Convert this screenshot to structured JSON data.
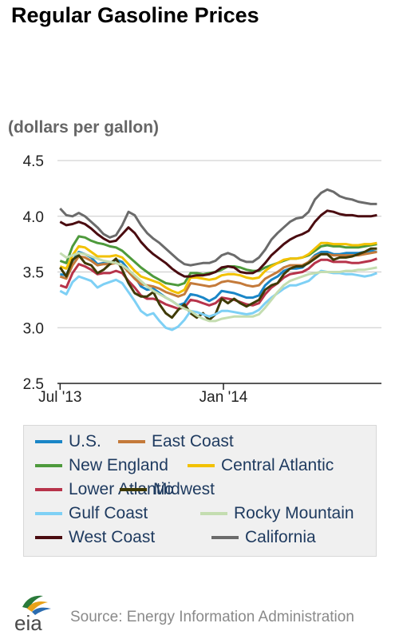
{
  "chart_data": {
    "type": "line",
    "title": "Regular Gasoline Prices",
    "ylabel": "(dollars per gallon)",
    "ylim": [
      2.5,
      4.5
    ],
    "yticks": [
      "2.5",
      "3.0",
      "3.5",
      "4.0",
      "4.5"
    ],
    "xticks": [
      "Jul '13",
      "Jan '14"
    ],
    "grid": true,
    "legend_position": "bottom",
    "x": [
      "2013-07-01",
      "2013-07-08",
      "2013-07-15",
      "2013-07-22",
      "2013-07-29",
      "2013-08-05",
      "2013-08-12",
      "2013-08-19",
      "2013-08-26",
      "2013-09-02",
      "2013-09-09",
      "2013-09-16",
      "2013-09-23",
      "2013-09-30",
      "2013-10-07",
      "2013-10-14",
      "2013-10-21",
      "2013-10-28",
      "2013-11-04",
      "2013-11-11",
      "2013-11-18",
      "2013-11-25",
      "2013-12-02",
      "2013-12-09",
      "2013-12-16",
      "2013-12-23",
      "2013-12-30",
      "2014-01-06",
      "2014-01-13",
      "2014-01-20",
      "2014-01-27",
      "2014-02-03",
      "2014-02-10",
      "2014-02-17",
      "2014-02-24",
      "2014-03-03",
      "2014-03-10",
      "2014-03-17",
      "2014-03-24",
      "2014-03-31",
      "2014-04-07",
      "2014-04-14",
      "2014-04-21",
      "2014-04-28",
      "2014-05-05",
      "2014-05-12",
      "2014-05-19",
      "2014-05-26",
      "2014-06-02",
      "2014-06-09",
      "2014-06-16",
      "2014-06-23"
    ],
    "series": [
      {
        "name": "U.S.",
        "color": "#1a86c7",
        "values": [
          3.48,
          3.47,
          3.6,
          3.68,
          3.66,
          3.63,
          3.57,
          3.58,
          3.58,
          3.61,
          3.59,
          3.52,
          3.46,
          3.37,
          3.34,
          3.35,
          3.31,
          3.27,
          3.24,
          3.2,
          3.22,
          3.3,
          3.29,
          3.27,
          3.24,
          3.27,
          3.33,
          3.32,
          3.31,
          3.29,
          3.27,
          3.27,
          3.29,
          3.38,
          3.43,
          3.46,
          3.51,
          3.53,
          3.53,
          3.54,
          3.59,
          3.65,
          3.68,
          3.68,
          3.66,
          3.66,
          3.67,
          3.67,
          3.67,
          3.68,
          3.69,
          3.68
        ]
      },
      {
        "name": "East Coast",
        "color": "#c47a3a",
        "values": [
          3.46,
          3.44,
          3.56,
          3.64,
          3.63,
          3.6,
          3.56,
          3.57,
          3.57,
          3.58,
          3.56,
          3.5,
          3.44,
          3.39,
          3.38,
          3.37,
          3.35,
          3.32,
          3.3,
          3.28,
          3.3,
          3.4,
          3.39,
          3.38,
          3.37,
          3.38,
          3.41,
          3.42,
          3.41,
          3.4,
          3.38,
          3.37,
          3.38,
          3.44,
          3.47,
          3.5,
          3.54,
          3.56,
          3.56,
          3.56,
          3.59,
          3.64,
          3.66,
          3.66,
          3.65,
          3.65,
          3.65,
          3.65,
          3.65,
          3.66,
          3.67,
          3.68
        ]
      },
      {
        "name": "New England",
        "color": "#4e9a3c",
        "values": [
          3.6,
          3.58,
          3.73,
          3.82,
          3.81,
          3.78,
          3.76,
          3.75,
          3.73,
          3.72,
          3.69,
          3.64,
          3.59,
          3.54,
          3.5,
          3.46,
          3.43,
          3.4,
          3.39,
          3.38,
          3.4,
          3.49,
          3.49,
          3.48,
          3.49,
          3.5,
          3.52,
          3.55,
          3.55,
          3.54,
          3.52,
          3.51,
          3.51,
          3.54,
          3.56,
          3.58,
          3.6,
          3.62,
          3.62,
          3.63,
          3.65,
          3.69,
          3.73,
          3.74,
          3.73,
          3.73,
          3.72,
          3.72,
          3.72,
          3.73,
          3.74,
          3.75
        ]
      },
      {
        "name": "Central Atlantic",
        "color": "#f2c100",
        "values": [
          3.55,
          3.53,
          3.65,
          3.73,
          3.72,
          3.68,
          3.64,
          3.64,
          3.64,
          3.65,
          3.63,
          3.57,
          3.51,
          3.46,
          3.44,
          3.42,
          3.4,
          3.36,
          3.33,
          3.31,
          3.34,
          3.45,
          3.45,
          3.44,
          3.43,
          3.44,
          3.47,
          3.48,
          3.48,
          3.47,
          3.45,
          3.44,
          3.45,
          3.51,
          3.55,
          3.58,
          3.61,
          3.62,
          3.62,
          3.63,
          3.66,
          3.71,
          3.76,
          3.76,
          3.75,
          3.75,
          3.75,
          3.74,
          3.74,
          3.75,
          3.75,
          3.76
        ]
      },
      {
        "name": "Lower Atlantic",
        "color": "#b7334a",
        "values": [
          3.38,
          3.36,
          3.49,
          3.57,
          3.55,
          3.52,
          3.48,
          3.49,
          3.49,
          3.51,
          3.49,
          3.42,
          3.36,
          3.29,
          3.26,
          3.26,
          3.24,
          3.21,
          3.19,
          3.17,
          3.18,
          3.25,
          3.24,
          3.22,
          3.2,
          3.22,
          3.27,
          3.26,
          3.25,
          3.23,
          3.21,
          3.2,
          3.22,
          3.3,
          3.36,
          3.4,
          3.45,
          3.48,
          3.49,
          3.5,
          3.53,
          3.58,
          3.61,
          3.61,
          3.59,
          3.59,
          3.59,
          3.58,
          3.58,
          3.59,
          3.6,
          3.62
        ]
      },
      {
        "name": "Midwest",
        "color": "#3f3a06",
        "values": [
          3.54,
          3.46,
          3.61,
          3.65,
          3.58,
          3.56,
          3.49,
          3.52,
          3.57,
          3.62,
          3.52,
          3.4,
          3.31,
          3.28,
          3.28,
          3.32,
          3.21,
          3.13,
          3.09,
          3.16,
          3.21,
          3.13,
          3.09,
          3.13,
          3.07,
          3.12,
          3.26,
          3.22,
          3.26,
          3.22,
          3.19,
          3.22,
          3.25,
          3.34,
          3.38,
          3.4,
          3.48,
          3.53,
          3.55,
          3.55,
          3.58,
          3.62,
          3.66,
          3.66,
          3.61,
          3.63,
          3.63,
          3.64,
          3.66,
          3.68,
          3.71,
          3.71
        ]
      },
      {
        "name": "Gulf Coast",
        "color": "#7ed0f5",
        "values": [
          3.33,
          3.3,
          3.41,
          3.46,
          3.44,
          3.42,
          3.36,
          3.39,
          3.41,
          3.43,
          3.4,
          3.32,
          3.24,
          3.15,
          3.11,
          3.13,
          3.06,
          3.0,
          2.98,
          3.01,
          3.07,
          3.15,
          3.14,
          3.12,
          3.1,
          3.12,
          3.15,
          3.15,
          3.14,
          3.13,
          3.12,
          3.13,
          3.16,
          3.22,
          3.27,
          3.31,
          3.35,
          3.38,
          3.38,
          3.4,
          3.42,
          3.47,
          3.51,
          3.5,
          3.49,
          3.49,
          3.48,
          3.48,
          3.47,
          3.46,
          3.47,
          3.49
        ]
      },
      {
        "name": "Rocky Mountain",
        "color": "#c4ddb0",
        "values": [
          3.67,
          3.63,
          3.65,
          3.67,
          3.66,
          3.64,
          3.62,
          3.6,
          3.59,
          3.58,
          3.56,
          3.52,
          3.47,
          3.42,
          3.37,
          3.33,
          3.3,
          3.27,
          3.24,
          3.2,
          3.17,
          3.15,
          3.11,
          3.08,
          3.06,
          3.06,
          3.08,
          3.09,
          3.1,
          3.1,
          3.1,
          3.1,
          3.12,
          3.18,
          3.25,
          3.32,
          3.38,
          3.42,
          3.44,
          3.46,
          3.48,
          3.49,
          3.5,
          3.5,
          3.5,
          3.5,
          3.51,
          3.51,
          3.52,
          3.52,
          3.53,
          3.54
        ]
      },
      {
        "name": "West Coast",
        "color": "#4a0c10",
        "values": [
          3.95,
          3.92,
          3.93,
          3.95,
          3.93,
          3.89,
          3.84,
          3.8,
          3.77,
          3.78,
          3.84,
          3.9,
          3.85,
          3.77,
          3.71,
          3.66,
          3.62,
          3.58,
          3.53,
          3.49,
          3.46,
          3.46,
          3.47,
          3.47,
          3.48,
          3.5,
          3.54,
          3.55,
          3.54,
          3.5,
          3.49,
          3.49,
          3.52,
          3.58,
          3.65,
          3.7,
          3.75,
          3.79,
          3.82,
          3.84,
          3.87,
          3.95,
          4.01,
          4.05,
          4.04,
          4.02,
          4.01,
          4.01,
          4.0,
          4.0,
          4.0,
          4.01
        ]
      },
      {
        "name": "California",
        "color": "#6b6b6b",
        "values": [
          4.07,
          4.01,
          4.0,
          4.03,
          4.0,
          3.95,
          3.9,
          3.84,
          3.81,
          3.83,
          3.92,
          4.04,
          4.01,
          3.92,
          3.85,
          3.8,
          3.76,
          3.71,
          3.66,
          3.61,
          3.57,
          3.56,
          3.57,
          3.58,
          3.58,
          3.6,
          3.65,
          3.67,
          3.65,
          3.61,
          3.59,
          3.59,
          3.63,
          3.7,
          3.79,
          3.85,
          3.9,
          3.95,
          3.98,
          3.99,
          4.04,
          4.15,
          4.21,
          4.24,
          4.22,
          4.18,
          4.16,
          4.15,
          4.13,
          4.12,
          4.11,
          4.11
        ]
      }
    ]
  },
  "source": {
    "logo_text": "eia",
    "text": "Source: Energy Information Administration"
  }
}
